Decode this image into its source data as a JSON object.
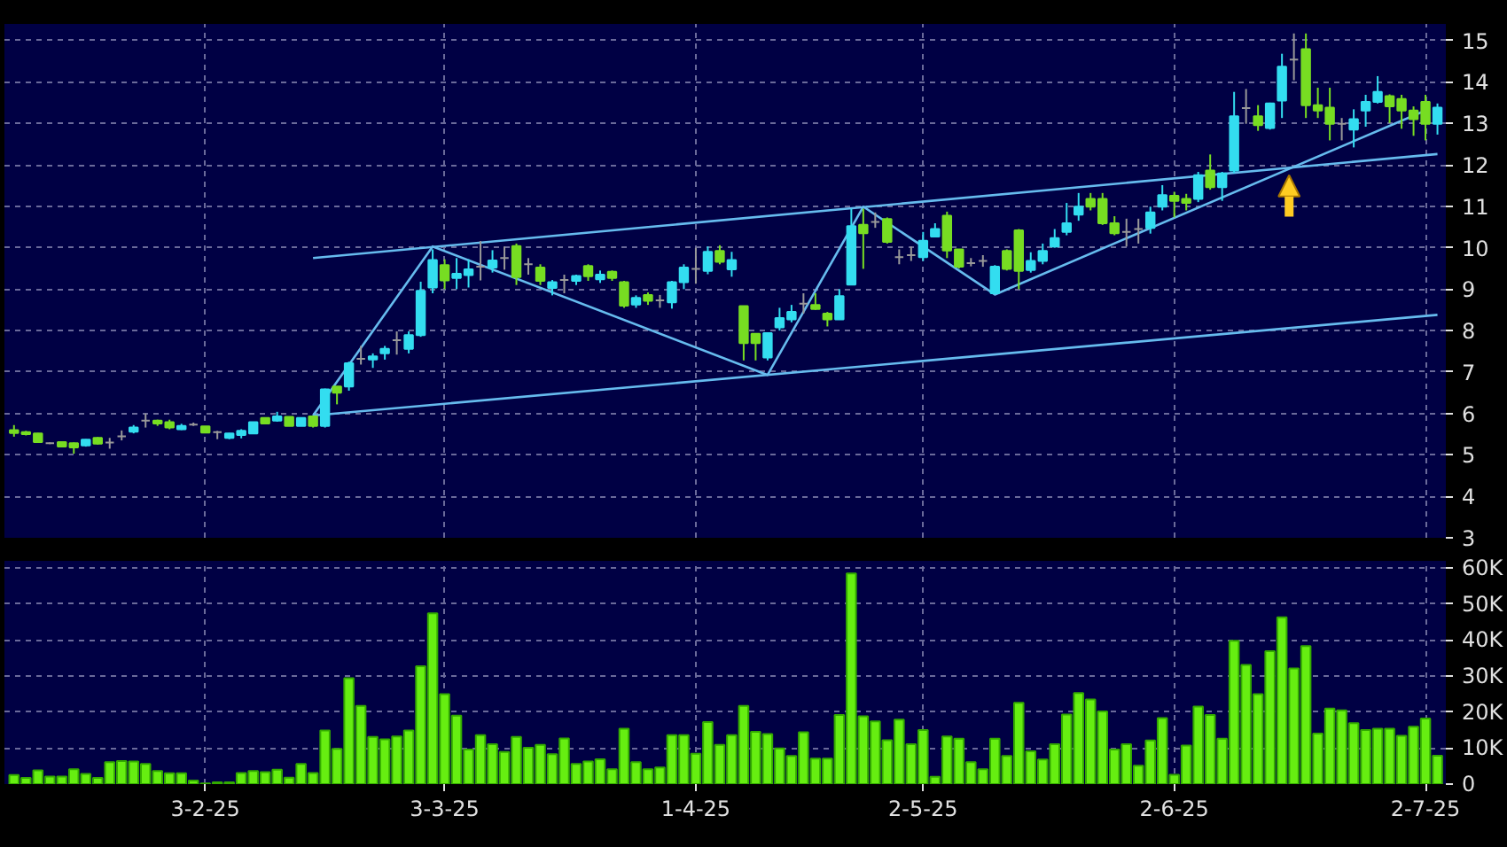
{
  "chart_data": [
    {
      "type": "candlestick",
      "categories": [
        null,
        null,
        null,
        null,
        null,
        null,
        null,
        null,
        null,
        null,
        null,
        null,
        null,
        null,
        null,
        null,
        null,
        null,
        null,
        null,
        null,
        null,
        null,
        null,
        null,
        null,
        null,
        null,
        null,
        null,
        null,
        null,
        null,
        null,
        null,
        null,
        null,
        null,
        null,
        null,
        null,
        null,
        null,
        null,
        null,
        null,
        null,
        null,
        null,
        null,
        null,
        null,
        null,
        null,
        null,
        null,
        null,
        null,
        null,
        null,
        null,
        null,
        null,
        null,
        null,
        null,
        null,
        null,
        null,
        null,
        null,
        null,
        null,
        null,
        null,
        null,
        null,
        null,
        null,
        null,
        null,
        null,
        null,
        null,
        null,
        null,
        null,
        null,
        null,
        null,
        null,
        null,
        null,
        null,
        null,
        null,
        null,
        null,
        null,
        null,
        null,
        null,
        null,
        null,
        null,
        null,
        null,
        null,
        null,
        null,
        null,
        null,
        null,
        null,
        null,
        null,
        null,
        null,
        null,
        null
      ],
      "ohlc": [
        [
          5.6,
          5.72,
          5.44,
          5.53
        ],
        [
          5.55,
          5.58,
          5.47,
          5.5
        ],
        [
          5.52,
          5.53,
          5.3,
          5.31
        ],
        [
          5.28,
          5.3,
          5.26,
          5.28
        ],
        [
          5.31,
          5.31,
          5.2,
          5.2
        ],
        [
          5.28,
          5.3,
          5.03,
          5.18
        ],
        [
          5.23,
          5.38,
          5.2,
          5.37
        ],
        [
          5.41,
          5.43,
          5.25,
          5.27
        ],
        [
          5.3,
          5.41,
          5.15,
          5.3
        ],
        [
          5.45,
          5.59,
          5.35,
          5.45
        ],
        [
          5.56,
          5.72,
          5.52,
          5.66
        ],
        [
          5.83,
          6.0,
          5.66,
          5.83
        ],
        [
          5.83,
          5.85,
          5.7,
          5.76
        ],
        [
          5.79,
          5.85,
          5.62,
          5.66
        ],
        [
          5.62,
          5.75,
          5.6,
          5.7
        ],
        [
          5.73,
          5.78,
          5.7,
          5.73
        ],
        [
          5.69,
          5.69,
          5.54,
          5.54
        ],
        [
          5.55,
          5.58,
          5.38,
          5.55
        ],
        [
          5.41,
          5.53,
          5.38,
          5.52
        ],
        [
          5.48,
          5.62,
          5.4,
          5.58
        ],
        [
          5.52,
          5.79,
          5.52,
          5.79
        ],
        [
          5.89,
          5.89,
          5.76,
          5.76
        ],
        [
          5.83,
          6.04,
          5.8,
          5.93
        ],
        [
          5.92,
          5.92,
          5.7,
          5.7
        ],
        [
          5.7,
          5.89,
          5.7,
          5.89
        ],
        [
          5.93,
          5.93,
          5.66,
          5.7
        ],
        [
          5.7,
          6.6,
          5.66,
          6.58
        ],
        [
          6.65,
          6.65,
          6.22,
          6.5
        ],
        [
          6.65,
          7.25,
          6.55,
          7.21
        ],
        [
          7.32,
          7.63,
          7.18,
          7.32
        ],
        [
          7.3,
          7.45,
          7.1,
          7.38
        ],
        [
          7.45,
          7.63,
          7.3,
          7.56
        ],
        [
          7.77,
          7.98,
          7.42,
          7.77
        ],
        [
          7.56,
          7.98,
          7.45,
          7.89
        ],
        [
          7.89,
          9.18,
          7.85,
          8.96
        ],
        [
          9.04,
          9.96,
          8.9,
          9.7
        ],
        [
          9.58,
          9.72,
          9.0,
          9.21
        ],
        [
          9.27,
          9.75,
          9.0,
          9.37
        ],
        [
          9.34,
          9.72,
          9.04,
          9.48
        ],
        [
          9.54,
          10.16,
          9.21,
          9.54
        ],
        [
          9.52,
          9.94,
          9.4,
          9.69
        ],
        [
          9.75,
          10.03,
          9.47,
          9.75
        ],
        [
          10.04,
          10.1,
          9.1,
          9.29
        ],
        [
          9.6,
          9.75,
          9.35,
          9.6
        ],
        [
          9.52,
          9.6,
          9.1,
          9.2
        ],
        [
          9.03,
          9.22,
          8.85,
          9.17
        ],
        [
          9.22,
          9.35,
          8.9,
          9.22
        ],
        [
          9.2,
          9.35,
          9.1,
          9.32
        ],
        [
          9.56,
          9.6,
          9.2,
          9.31
        ],
        [
          9.24,
          9.45,
          9.15,
          9.35
        ],
        [
          9.42,
          9.45,
          9.2,
          9.27
        ],
        [
          9.17,
          9.2,
          8.55,
          8.6
        ],
        [
          8.63,
          8.85,
          8.55,
          8.79
        ],
        [
          8.86,
          8.92,
          8.62,
          8.72
        ],
        [
          8.73,
          8.86,
          8.55,
          8.73
        ],
        [
          8.68,
          9.2,
          8.53,
          9.17
        ],
        [
          9.17,
          9.6,
          9.0,
          9.52
        ],
        [
          9.49,
          10.0,
          9.13,
          9.49
        ],
        [
          9.44,
          10.03,
          9.36,
          9.9
        ],
        [
          9.92,
          10.06,
          9.6,
          9.66
        ],
        [
          9.48,
          9.9,
          9.3,
          9.7
        ],
        [
          8.59,
          8.59,
          7.28,
          7.7
        ],
        [
          7.92,
          7.92,
          7.28,
          7.7
        ],
        [
          7.35,
          7.96,
          7.28,
          7.94
        ],
        [
          8.08,
          8.55,
          8.0,
          8.3
        ],
        [
          8.27,
          8.62,
          8.2,
          8.45
        ],
        [
          8.65,
          8.9,
          8.41,
          8.65
        ],
        [
          8.62,
          8.9,
          8.5,
          8.52
        ],
        [
          8.41,
          8.45,
          8.1,
          8.27
        ],
        [
          8.27,
          9.0,
          8.27,
          8.83
        ],
        [
          9.11,
          10.94,
          9.11,
          10.52
        ],
        [
          10.55,
          10.94,
          9.49,
          10.35
        ],
        [
          10.62,
          10.85,
          10.48,
          10.62
        ],
        [
          10.69,
          10.73,
          10.1,
          10.14
        ],
        [
          9.77,
          9.96,
          9.6,
          9.77
        ],
        [
          9.82,
          10.03,
          9.68,
          9.82
        ],
        [
          9.77,
          10.38,
          9.68,
          10.17
        ],
        [
          10.27,
          10.59,
          10.27,
          10.45
        ],
        [
          10.77,
          10.87,
          9.75,
          9.93
        ],
        [
          9.96,
          9.96,
          9.5,
          9.54
        ],
        [
          9.63,
          9.75,
          9.55,
          9.63
        ],
        [
          9.68,
          9.82,
          9.54,
          9.68
        ],
        [
          8.9,
          9.58,
          8.88,
          9.54
        ],
        [
          9.92,
          9.96,
          9.45,
          9.49
        ],
        [
          10.42,
          10.45,
          9.0,
          9.44
        ],
        [
          9.46,
          9.89,
          9.4,
          9.68
        ],
        [
          9.68,
          10.1,
          9.6,
          9.92
        ],
        [
          10.03,
          10.45,
          10.0,
          10.23
        ],
        [
          10.38,
          11.08,
          10.3,
          10.59
        ],
        [
          10.8,
          11.32,
          10.65,
          10.99
        ],
        [
          11.18,
          11.32,
          10.9,
          10.99
        ],
        [
          11.18,
          11.32,
          10.55,
          10.59
        ],
        [
          10.59,
          10.76,
          10.3,
          10.35
        ],
        [
          10.38,
          10.7,
          10.03,
          10.38
        ],
        [
          10.45,
          10.7,
          10.1,
          10.45
        ],
        [
          10.48,
          10.99,
          10.34,
          10.85
        ],
        [
          10.99,
          11.51,
          10.9,
          11.27
        ],
        [
          11.25,
          11.35,
          10.73,
          11.13
        ],
        [
          11.18,
          11.3,
          10.9,
          11.08
        ],
        [
          11.18,
          11.83,
          11.1,
          11.75
        ],
        [
          11.86,
          12.25,
          11.4,
          11.46
        ],
        [
          11.46,
          11.83,
          11.13,
          11.79
        ],
        [
          11.86,
          13.76,
          11.8,
          13.17
        ],
        [
          13.37,
          13.83,
          12.99,
          13.37
        ],
        [
          13.17,
          13.44,
          12.82,
          12.96
        ],
        [
          12.89,
          13.5,
          12.85,
          13.48
        ],
        [
          13.55,
          14.68,
          13.13,
          14.37
        ],
        [
          14.54,
          15.17,
          14.04,
          14.54
        ],
        [
          14.79,
          15.17,
          13.13,
          13.44
        ],
        [
          13.44,
          13.86,
          13.13,
          13.31
        ],
        [
          13.38,
          13.86,
          12.59,
          12.99
        ],
        [
          12.99,
          13.13,
          12.59,
          12.99
        ],
        [
          12.85,
          13.34,
          12.42,
          13.1
        ],
        [
          13.31,
          13.69,
          12.92,
          13.52
        ],
        [
          13.52,
          14.14,
          13.48,
          13.76
        ],
        [
          13.66,
          13.7,
          13.01,
          13.41
        ],
        [
          13.59,
          13.69,
          12.87,
          13.31
        ],
        [
          13.31,
          13.41,
          12.7,
          13.1
        ],
        [
          13.52,
          13.69,
          12.59,
          12.99
        ],
        [
          12.99,
          13.48,
          12.73,
          13.38
        ]
      ],
      "colors": [
        "#77dd22",
        "#77dd22",
        "#77dd22",
        "#999999",
        "#77dd22",
        "#77dd22",
        "#33ddf0",
        "#77dd22",
        "#999999",
        "#999999",
        "#33ddf0",
        "#999999",
        "#77dd22",
        "#77dd22",
        "#33ddf0",
        "#999999",
        "#77dd22",
        "#999999",
        "#33ddf0",
        "#33ddf0",
        "#33ddf0",
        "#77dd22",
        "#33ddf0",
        "#77dd22",
        "#33ddf0",
        "#77dd22",
        "#33ddf0",
        "#77dd22",
        "#33ddf0",
        "#999999",
        "#33ddf0",
        "#33ddf0",
        "#999999",
        "#33ddf0",
        "#33ddf0",
        "#33ddf0",
        "#77dd22",
        "#33ddf0",
        "#33ddf0",
        "#999999",
        "#33ddf0",
        "#999999",
        "#77dd22",
        "#999999",
        "#77dd22",
        "#33ddf0",
        "#999999",
        "#33ddf0",
        "#77dd22",
        "#33ddf0",
        "#77dd22",
        "#77dd22",
        "#33ddf0",
        "#77dd22",
        "#999999",
        "#33ddf0",
        "#33ddf0",
        "#999999",
        "#33ddf0",
        "#77dd22",
        "#33ddf0",
        "#77dd22",
        "#77dd22",
        "#33ddf0",
        "#33ddf0",
        "#33ddf0",
        "#999999",
        "#77dd22",
        "#77dd22",
        "#33ddf0",
        "#33ddf0",
        "#77dd22",
        "#999999",
        "#77dd22",
        "#999999",
        "#999999",
        "#33ddf0",
        "#33ddf0",
        "#77dd22",
        "#77dd22",
        "#999999",
        "#999999",
        "#33ddf0",
        "#77dd22",
        "#77dd22",
        "#33ddf0",
        "#33ddf0",
        "#33ddf0",
        "#33ddf0",
        "#33ddf0",
        "#77dd22",
        "#77dd22",
        "#77dd22",
        "#999999",
        "#999999",
        "#33ddf0",
        "#33ddf0",
        "#77dd22",
        "#77dd22",
        "#33ddf0",
        "#77dd22",
        "#33ddf0",
        "#33ddf0",
        "#999999",
        "#77dd22",
        "#33ddf0",
        "#33ddf0",
        "#999999",
        "#77dd22",
        "#77dd22",
        "#77dd22",
        "#999999",
        "#33ddf0",
        "#33ddf0",
        "#33ddf0",
        "#77dd22",
        "#77dd22",
        "#77dd22",
        "#77dd22",
        "#33ddf0"
      ],
      "series": [
        {
          "type": "line",
          "color": "#66bbee",
          "values": [
            null,
            null,
            null,
            null,
            null,
            null,
            null,
            null,
            null,
            null,
            null,
            null,
            null,
            null,
            null,
            null,
            null,
            null,
            null,
            null,
            null,
            null,
            null,
            null,
            null,
            9.75,
            null,
            null,
            null,
            null,
            null,
            null,
            null,
            null,
            null,
            null,
            null,
            null,
            null,
            null,
            null,
            null,
            null,
            null,
            null,
            null,
            null,
            null,
            null,
            null,
            null,
            null,
            null,
            null,
            null,
            null,
            null,
            null,
            null,
            null,
            null,
            null,
            null,
            null,
            null,
            null,
            null,
            null,
            null,
            null,
            null,
            null,
            null,
            null,
            null,
            null,
            null,
            null,
            null,
            null,
            null,
            null,
            null,
            null,
            null,
            null,
            null,
            null,
            null,
            null,
            null,
            null,
            null,
            null,
            null,
            null,
            null,
            null,
            null,
            null,
            null,
            null,
            null,
            null,
            null,
            null,
            null,
            null,
            null,
            null,
            null,
            null,
            null,
            null,
            null,
            null,
            null,
            null,
            null,
            12.26
          ]
        },
        {
          "type": "line",
          "color": "#66bbee",
          "values": [
            null,
            null,
            null,
            null,
            null,
            null,
            null,
            null,
            null,
            null,
            null,
            null,
            null,
            null,
            null,
            null,
            null,
            null,
            null,
            null,
            null,
            null,
            null,
            null,
            null,
            5.95,
            null,
            null,
            null,
            null,
            null,
            null,
            null,
            null,
            null,
            null,
            null,
            null,
            null,
            null,
            null,
            null,
            null,
            null,
            null,
            null,
            null,
            null,
            null,
            null,
            null,
            null,
            null,
            null,
            null,
            null,
            null,
            null,
            null,
            null,
            null,
            null,
            null,
            null,
            null,
            null,
            null,
            null,
            null,
            null,
            null,
            null,
            null,
            null,
            null,
            null,
            null,
            null,
            null,
            null,
            null,
            null,
            null,
            null,
            null,
            null,
            null,
            null,
            null,
            null,
            null,
            null,
            null,
            null,
            null,
            null,
            null,
            null,
            null,
            null,
            null,
            null,
            null,
            null,
            null,
            null,
            null,
            null,
            null,
            null,
            null,
            null,
            null,
            null,
            null,
            null,
            null,
            null,
            null,
            8.38
          ]
        },
        {
          "type": "line",
          "color": "#66bbee",
          "values": [
            null,
            null,
            null,
            null,
            null,
            null,
            null,
            null,
            null,
            null,
            null,
            null,
            null,
            null,
            null,
            null,
            null,
            null,
            null,
            null,
            null,
            null,
            null,
            null,
            null,
            5.95,
            null,
            null,
            null,
            null,
            null,
            null,
            null,
            null,
            null,
            10.03,
            null,
            null,
            null,
            null,
            null,
            null,
            null,
            null,
            null,
            null,
            null,
            null,
            null,
            null,
            null,
            null,
            null,
            null,
            null,
            null,
            null,
            null,
            null,
            null,
            null,
            null,
            null,
            6.93,
            null,
            null,
            null,
            null,
            null,
            null,
            null,
            10.99,
            null,
            null,
            null,
            null,
            null,
            null,
            null,
            null,
            null,
            null,
            8.87,
            null,
            null,
            null,
            null,
            null,
            null,
            null,
            null,
            null,
            null,
            null,
            null,
            null,
            null,
            null,
            null,
            null,
            null,
            null,
            null,
            null,
            null,
            null,
            null,
            null,
            null,
            null,
            null,
            null,
            null,
            null,
            null,
            null,
            null,
            null,
            13.31,
            null
          ]
        }
      ],
      "ylim": [
        3,
        15.4
      ],
      "yticks": [
        3,
        4,
        5,
        6,
        7,
        8,
        9,
        10,
        11,
        12,
        13,
        14,
        15
      ],
      "grid": true,
      "tick_labels": "y"
    },
    {
      "type": "bar",
      "color": "#66ee11",
      "categories": [
        null,
        null,
        null,
        null,
        null,
        null,
        null,
        null,
        null,
        null,
        null,
        null,
        null,
        null,
        null,
        null,
        "3-2-25",
        null,
        null,
        null,
        null,
        null,
        null,
        null,
        null,
        null,
        null,
        null,
        null,
        null,
        null,
        null,
        null,
        null,
        null,
        null,
        "3-3-25",
        null,
        null,
        null,
        null,
        null,
        null,
        null,
        null,
        null,
        null,
        null,
        null,
        null,
        null,
        null,
        null,
        null,
        null,
        null,
        null,
        "1-4-25",
        null,
        null,
        null,
        null,
        null,
        null,
        null,
        null,
        null,
        null,
        null,
        null,
        null,
        null,
        null,
        null,
        null,
        null,
        "2-5-25",
        null,
        null,
        null,
        null,
        null,
        null,
        null,
        null,
        null,
        null,
        null,
        null,
        null,
        null,
        null,
        null,
        null,
        null,
        null,
        null,
        "2-6-25",
        null,
        null,
        null,
        null,
        null,
        null,
        null,
        null,
        null,
        null,
        null,
        null,
        null,
        null,
        null,
        null,
        null,
        null,
        null,
        null,
        "2-7-25",
        null
      ],
      "values": [
        2500,
        1700,
        3800,
        2100,
        2100,
        4100,
        2800,
        1700,
        6100,
        6400,
        6300,
        5600,
        3600,
        3000,
        3000,
        1000,
        200,
        500,
        500,
        3100,
        3600,
        3300,
        4000,
        1800,
        5600,
        3100,
        14900,
        9800,
        29400,
        21700,
        13100,
        12400,
        13200,
        14900,
        32700,
        47400,
        25000,
        19000,
        9600,
        13600,
        11100,
        8900,
        13100,
        10100,
        10900,
        8300,
        12700,
        5600,
        6300,
        6900,
        4100,
        15400,
        6100,
        4100,
        4600,
        13600,
        13600,
        8400,
        17200,
        10900,
        13600,
        21700,
        14500,
        13900,
        9900,
        7800,
        14400,
        7100,
        7100,
        19200,
        58500,
        18800,
        17400,
        12200,
        17900,
        11100,
        15000,
        2000,
        13200,
        12600,
        6100,
        4100,
        12600,
        7800,
        22600,
        9100,
        6800,
        11100,
        19300,
        25300,
        23500,
        20200,
        9600,
        11100,
        5100,
        12100,
        18300,
        2600,
        10700,
        21500,
        19200,
        12600,
        39800,
        33100,
        25000,
        36900,
        46300,
        32100,
        38300,
        14000,
        21000,
        20500,
        16900,
        15000,
        15400,
        15400,
        13400,
        15900,
        18200,
        7900
      ],
      "ylim": [
        0,
        62000
      ],
      "yticks": [
        0,
        {
          "value": 10000,
          "label": "10K"
        },
        {
          "value": 20000,
          "label": "20K"
        },
        {
          "value": 30000,
          "label": "30K"
        },
        {
          "value": 40000,
          "label": "40K"
        },
        {
          "value": 50000,
          "label": "50K"
        },
        {
          "value": 60000,
          "label": "60K"
        }
      ],
      "grid": true
    }
  ]
}
